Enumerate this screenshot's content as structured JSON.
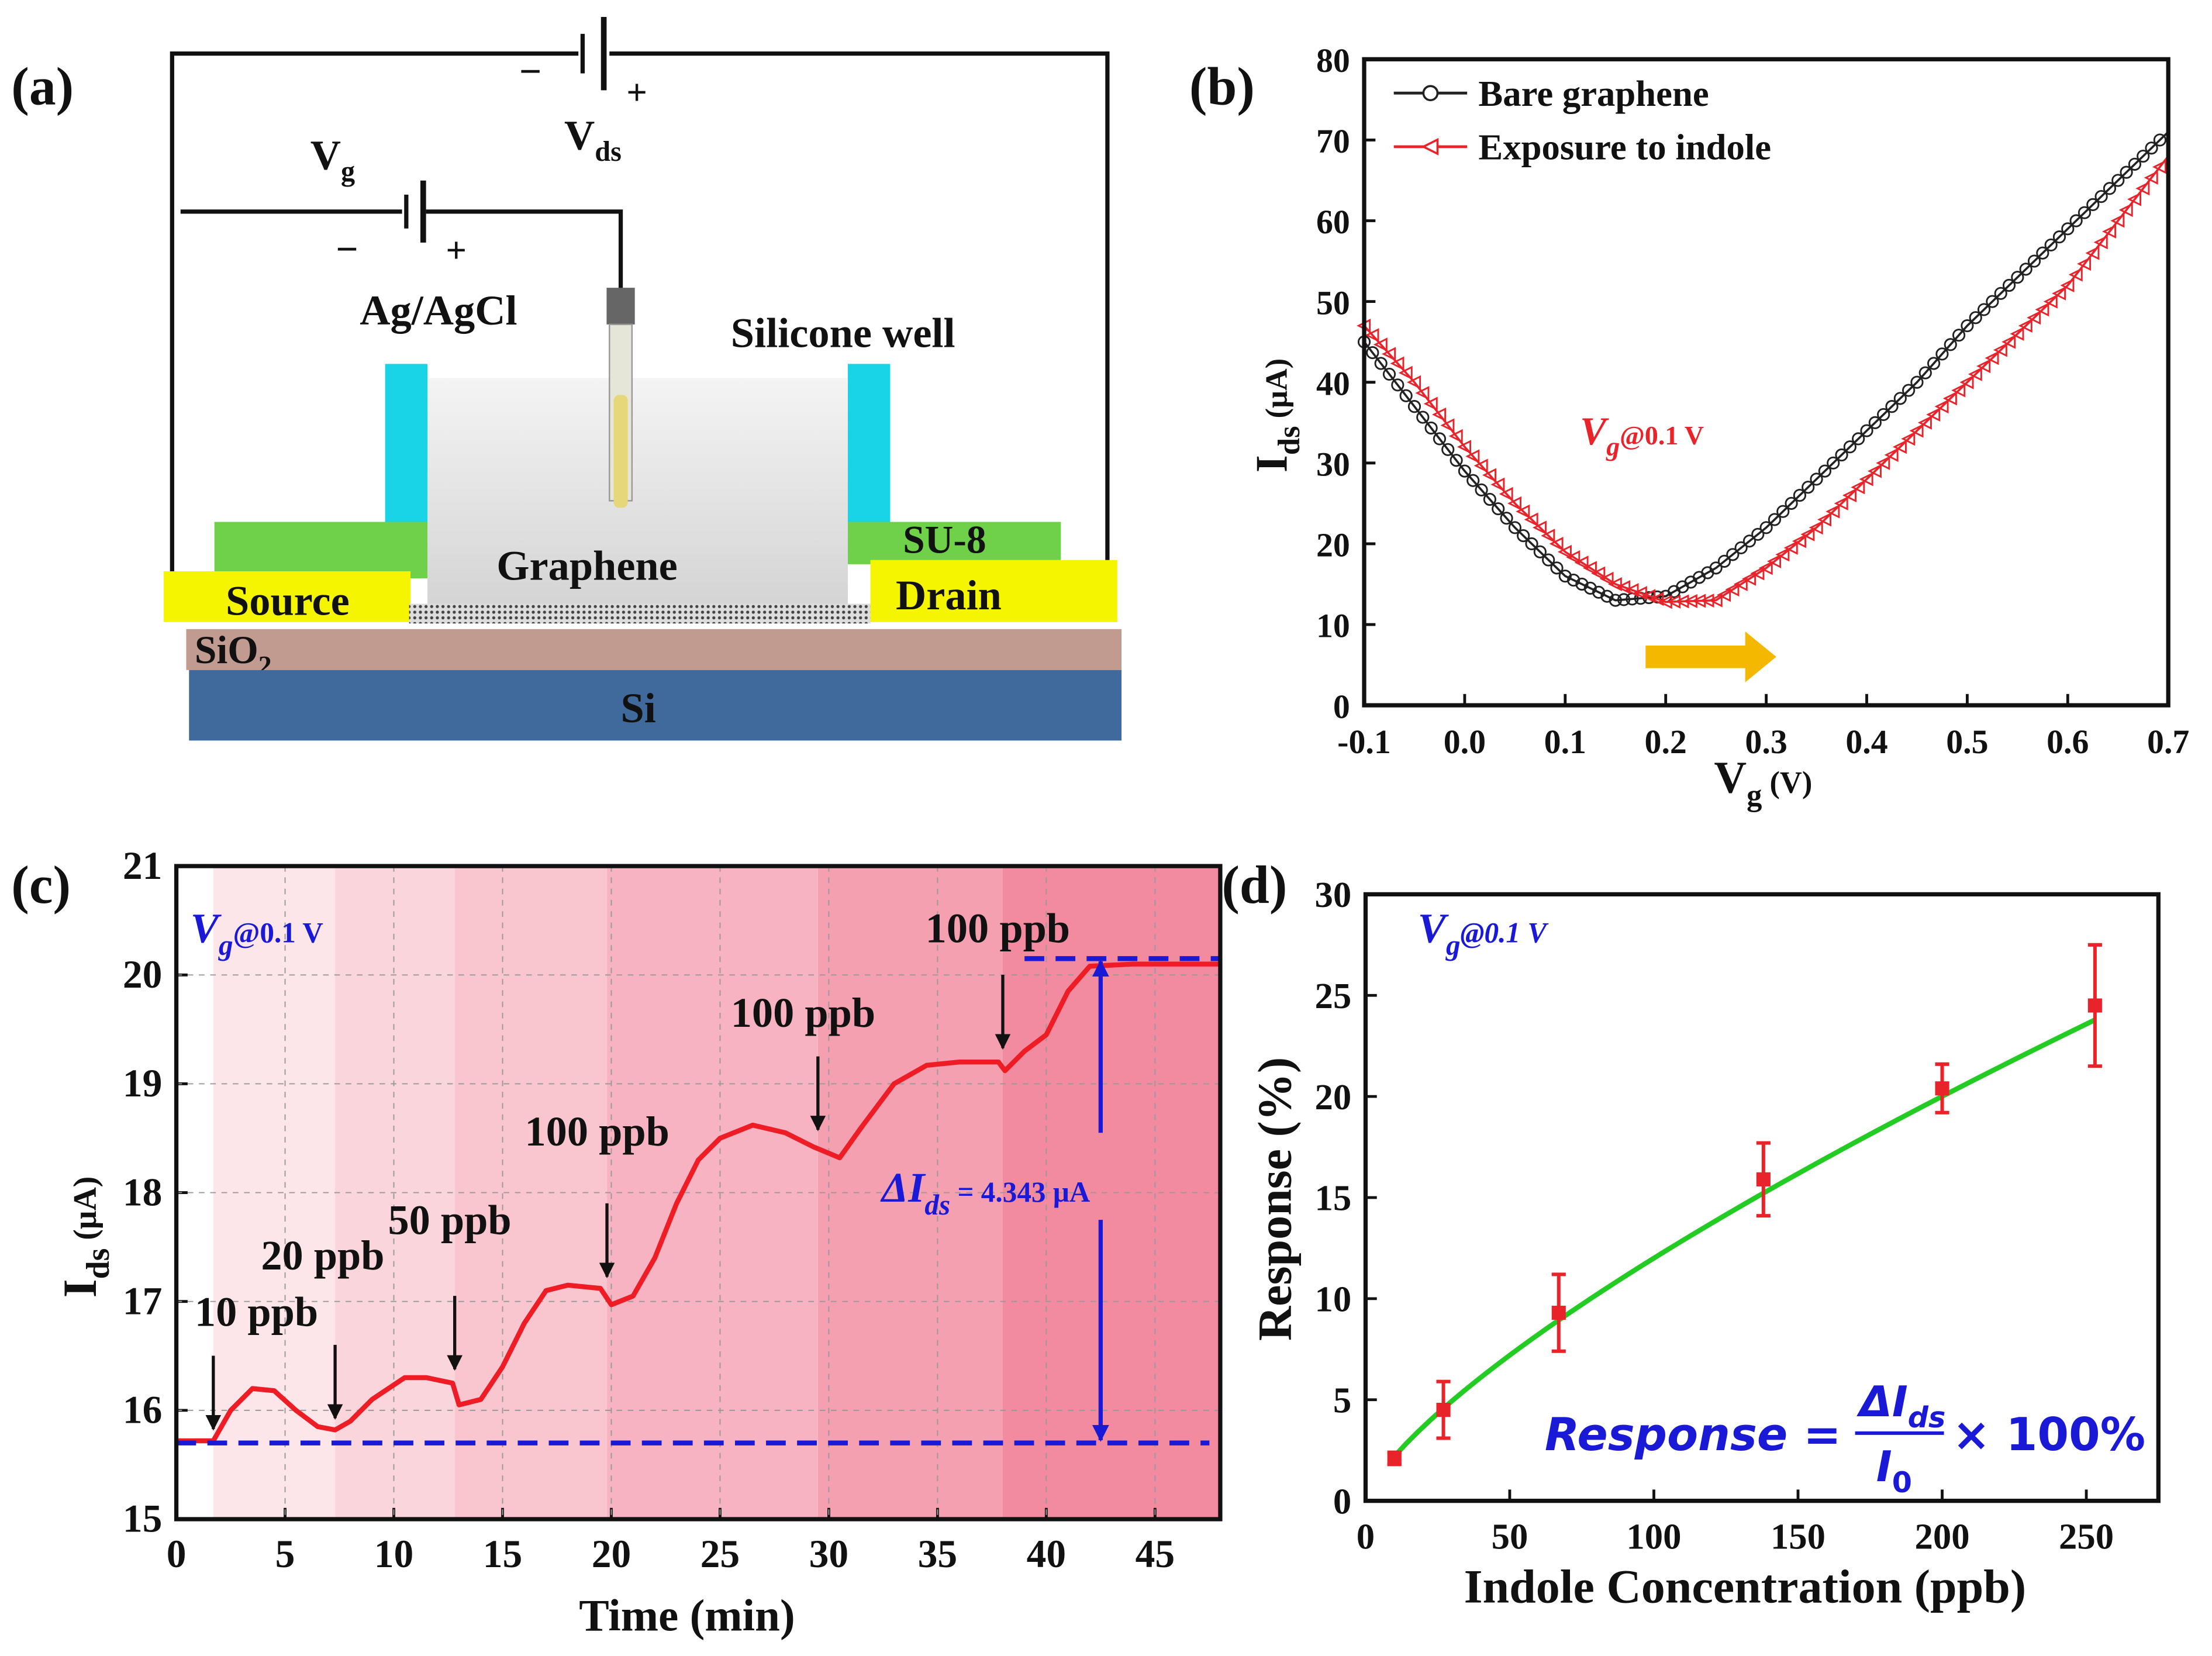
{
  "panel_labels": {
    "a": "(a)",
    "b": "(b)",
    "c": "(c)",
    "d": "(d)"
  },
  "diagram": {
    "vds_label": "V",
    "vds_sub": "ds",
    "vg_label": "V",
    "vg_sub": "g",
    "minus": "−",
    "plus": "+",
    "ref_electrode": "Ag/AgCl",
    "well": "Silicone well",
    "su8": "SU-8",
    "graphene": "Graphene",
    "source": "Source",
    "drain": "Drain",
    "sio2": "SiO",
    "sio2_sub": "2",
    "si": "Si",
    "colors": {
      "well_wall": "#19d3e6",
      "su8": "#6fd14a",
      "electrode_pad": "#f5f500",
      "sio2": "#c19a90",
      "si": "#3f6a9b"
    }
  },
  "chart_data": [
    {
      "id": "b",
      "type": "line",
      "xlabel": "V",
      "xlabel_sub": "g",
      "xlabel_unit": " (V)",
      "ylabel": "I",
      "ylabel_sub": "ds",
      "ylabel_unit": " (μA)",
      "xlim": [
        -0.1,
        0.7
      ],
      "ylim": [
        0,
        80
      ],
      "xticks": [
        "-0.1",
        "0.0",
        "0.1",
        "0.2",
        "0.3",
        "0.4",
        "0.5",
        "0.6",
        "0.7"
      ],
      "xtick_values": [
        -0.1,
        0,
        0.1,
        0.2,
        0.3,
        0.4,
        0.5,
        0.6,
        0.7
      ],
      "yticks": [
        "0",
        "10",
        "20",
        "30",
        "40",
        "50",
        "60",
        "70",
        "80"
      ],
      "ytick_values": [
        0,
        10,
        20,
        30,
        40,
        50,
        60,
        70,
        80
      ],
      "legend_position": "top-left",
      "annotation": {
        "text": "V",
        "sub": "g",
        "rest": "@0.1 V"
      },
      "shift_arrow": {
        "from": 0.18,
        "to": 0.31,
        "y": 6,
        "color": "#f5b800"
      },
      "x": [
        -0.1,
        -0.05,
        0,
        0.05,
        0.1,
        0.15,
        0.2,
        0.25,
        0.3,
        0.35,
        0.4,
        0.45,
        0.5,
        0.55,
        0.6,
        0.65,
        0.7
      ],
      "series": [
        {
          "name": "Bare graphene",
          "color": "#222222",
          "marker": "circle",
          "values": [
            45,
            37,
            29,
            22,
            16,
            13,
            13.5,
            17,
            22,
            28,
            34,
            40,
            47,
            53,
            59,
            65,
            71
          ]
        },
        {
          "name": "Exposure to indole",
          "color": "#e8232a",
          "marker": "triangle-left",
          "values": [
            47,
            40,
            32,
            25,
            19,
            15,
            12.8,
            13,
            17,
            22,
            28,
            34,
            40,
            46,
            52,
            60,
            68
          ]
        }
      ]
    },
    {
      "id": "c",
      "type": "line",
      "xlabel": "Time (min)",
      "ylabel": "I",
      "ylabel_sub": "ds",
      "ylabel_unit": " (μA)",
      "xlim": [
        0,
        48
      ],
      "ylim": [
        15,
        21
      ],
      "xticks": [
        "0",
        "5",
        "10",
        "15",
        "20",
        "25",
        "30",
        "35",
        "40",
        "45"
      ],
      "xtick_values": [
        0,
        5,
        10,
        15,
        20,
        25,
        30,
        35,
        40,
        45
      ],
      "yticks": [
        "15",
        "16",
        "17",
        "18",
        "19",
        "20",
        "21"
      ],
      "ytick_values": [
        15,
        16,
        17,
        18,
        19,
        20,
        21
      ],
      "grid": true,
      "annotation": {
        "text": "V",
        "sub": "g",
        "rest": "@0.1 V"
      },
      "delta": {
        "label": "ΔI",
        "sub": "ds",
        "rest": " = 4.343 μA",
        "baseline": 15.7,
        "top": 20.15,
        "at_time": 42.5
      },
      "band_edges": [
        1.7,
        7.3,
        12.8,
        19.8,
        29.5,
        38,
        48
      ],
      "band_colors": [
        "#fde6ea",
        "#fbd5dc",
        "#f9c6d0",
        "#f7b3c1",
        "#f5a0b1",
        "#f28ba0"
      ],
      "injections": [
        {
          "time": 1.7,
          "level": 15.75,
          "label": "10 ppb"
        },
        {
          "time": 7.3,
          "level": 15.85,
          "label": "20 ppb"
        },
        {
          "time": 12.8,
          "level": 16.3,
          "label": "50 ppb"
        },
        {
          "time": 19.8,
          "level": 17.15,
          "label": "100 ppb"
        },
        {
          "time": 29.5,
          "level": 18.5,
          "label": "100 ppb"
        },
        {
          "time": 38,
          "level": 19.25,
          "label": "100 ppb"
        }
      ],
      "x": [
        0,
        1.7,
        2.5,
        3.5,
        4.5,
        5.5,
        6.5,
        7.3,
        8,
        9,
        10.5,
        11.5,
        12.7,
        13,
        14,
        15,
        16,
        17,
        18,
        19.5,
        20,
        21,
        22,
        23,
        24,
        25,
        26.5,
        28,
        29.3,
        30.5,
        31.5,
        33,
        34.5,
        36,
        37.8,
        38.1,
        39,
        40,
        41,
        42,
        44,
        48
      ],
      "series": [
        {
          "name": "I_ds",
          "color": "#ee1c25",
          "values": [
            15.72,
            15.72,
            16.0,
            16.2,
            16.18,
            16.0,
            15.85,
            15.82,
            15.9,
            16.1,
            16.3,
            16.3,
            16.25,
            16.05,
            16.1,
            16.4,
            16.8,
            17.1,
            17.15,
            17.12,
            16.97,
            17.05,
            17.4,
            17.9,
            18.3,
            18.5,
            18.62,
            18.55,
            18.42,
            18.32,
            18.6,
            19.0,
            19.17,
            19.2,
            19.2,
            19.12,
            19.3,
            19.45,
            19.85,
            20.08,
            20.1,
            20.1
          ]
        }
      ]
    },
    {
      "id": "d",
      "type": "scatter",
      "xlabel": "Indole Concentration (ppb)",
      "ylabel": "Response (%)",
      "xlim": [
        0,
        275
      ],
      "ylim": [
        0,
        30
      ],
      "xticks": [
        "0",
        "50",
        "100",
        "150",
        "200",
        "250"
      ],
      "xtick_values": [
        0,
        50,
        100,
        150,
        200,
        250
      ],
      "yticks": [
        "0",
        "5",
        "10",
        "15",
        "20",
        "25",
        "30"
      ],
      "ytick_values": [
        0,
        5,
        10,
        15,
        20,
        25,
        30
      ],
      "annotation": {
        "text": "V",
        "sub": "g",
        "rest": "@0.1 V"
      },
      "formula": {
        "lhs": "Response = ",
        "num": "ΔI",
        "num_sub": "ds",
        "den": "I",
        "den_sub": "0",
        "rhs": "× 100%"
      },
      "points": {
        "x": [
          10,
          27,
          67,
          138,
          200,
          253
        ],
        "y": [
          2.1,
          4.5,
          9.3,
          15.9,
          20.4,
          24.5
        ],
        "err": [
          0.3,
          1.4,
          1.9,
          1.8,
          1.2,
          3.0
        ],
        "color": "#e8232a"
      },
      "fit": {
        "type": "power",
        "a": 0.403,
        "b": 0.737,
        "x_range": [
          10,
          253
        ],
        "color": "#22cc22"
      }
    }
  ]
}
